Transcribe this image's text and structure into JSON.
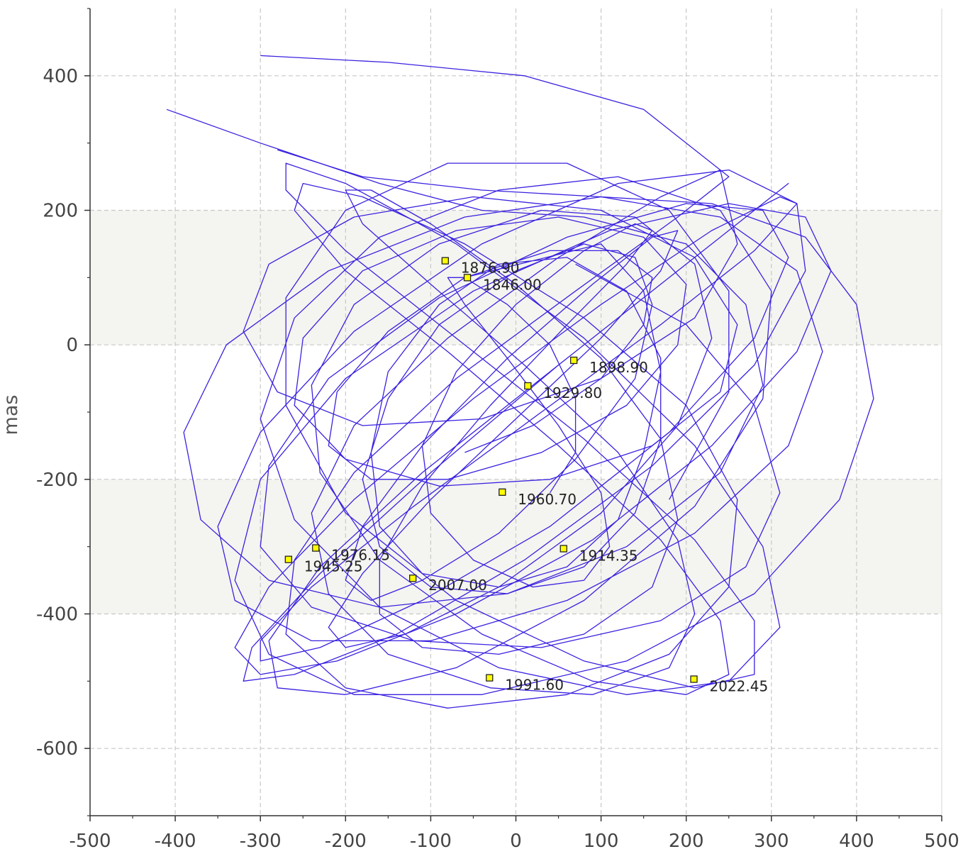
{
  "chart_data": {
    "type": "line",
    "title": "",
    "xlabel": "",
    "ylabel": "mas",
    "xlim": [
      -500,
      500
    ],
    "ylim": [
      -700,
      500
    ],
    "x_ticks": [
      -500,
      -400,
      -300,
      -200,
      -100,
      0,
      100,
      200,
      300,
      400,
      500
    ],
    "y_ticks": [
      400,
      200,
      0,
      -200,
      -400,
      -600
    ],
    "x_tick_labels": [
      "-500",
      "-400",
      "-300",
      "-200",
      "-100",
      "0",
      "100",
      "200",
      "300",
      "400",
      "500"
    ],
    "y_tick_labels": [
      "400",
      "200",
      "0",
      "-200",
      "-400",
      "-600"
    ],
    "grid": true,
    "bands_y": [
      [
        200,
        0
      ],
      [
        -200,
        -400
      ]
    ],
    "colors": {
      "line": "#3a22e0",
      "marker_fill": "#ffff00",
      "marker_edge": "#222222",
      "band": "#f4f4f0",
      "grid": "#c8c8c8"
    },
    "series": [
      {
        "x": [
          -60,
          100,
          150,
          170,
          150,
          120,
          60,
          -20,
          -110,
          -160,
          -170,
          -150,
          -90,
          -20,
          60,
          130,
          170,
          170,
          140,
          80,
          -10,
          -100,
          -160,
          -180,
          -150,
          -90,
          0,
          80,
          140,
          160,
          140,
          70,
          -20,
          -110,
          -170,
          -200,
          -180,
          -110,
          -10,
          90,
          160,
          190,
          170,
          100,
          0,
          -100,
          -180,
          -220,
          -200,
          -130,
          -20,
          100,
          190,
          230,
          210,
          140,
          30,
          -90,
          -190,
          -240,
          -230,
          -160,
          -40,
          90,
          200,
          250,
          240,
          170,
          50,
          -80,
          -200,
          -260,
          -250,
          -180,
          -60,
          80,
          200,
          260,
          250,
          180,
          60,
          -80,
          -200,
          -270,
          -260,
          -190,
          -70,
          70,
          190,
          250,
          240,
          170,
          50,
          -80,
          -190,
          -240,
          -220,
          -150,
          -30,
          90,
          180,
          210,
          190,
          120,
          10,
          -100,
          -180,
          -200,
          -170,
          -100,
          0,
          100,
          170,
          190,
          160,
          80,
          -20,
          -110,
          -160,
          -160,
          -110,
          -30,
          60,
          130,
          160,
          140,
          80,
          0,
          -70,
          -110,
          -100,
          -50,
          20,
          80,
          110,
          100,
          50,
          -10,
          -60,
          -80,
          -60,
          -10,
          40,
          70,
          70,
          40
        ],
        "y": [
          100,
          150,
          80,
          -40,
          -160,
          -260,
          -330,
          -360,
          -340,
          -270,
          -160,
          -40,
          60,
          120,
          130,
          80,
          -20,
          -140,
          -250,
          -330,
          -370,
          -360,
          -300,
          -200,
          -80,
          30,
          110,
          150,
          130,
          60,
          -50,
          -170,
          -280,
          -350,
          -380,
          -350,
          -270,
          -150,
          -20,
          90,
          160,
          170,
          110,
          10,
          -110,
          -230,
          -340,
          -420,
          -450,
          -430,
          -360,
          -250,
          -120,
          10,
          120,
          190,
          200,
          150,
          60,
          -60,
          -190,
          -320,
          -430,
          -500,
          -520,
          -490,
          -410,
          -290,
          -150,
          -10,
          110,
          200,
          240,
          220,
          150,
          40,
          -90,
          -230,
          -360,
          -460,
          -520,
          -540,
          -510,
          -430,
          -320,
          -190,
          -50,
          80,
          190,
          250,
          260,
          220,
          130,
          10,
          -120,
          -250,
          -370,
          -460,
          -510,
          -520,
          -480,
          -400,
          -290,
          -160,
          -30,
          90,
          180,
          230,
          230,
          180,
          90,
          -20,
          -140,
          -260,
          -360,
          -430,
          -460,
          -450,
          -400,
          -320,
          -210,
          -90,
          30,
          120,
          170,
          180,
          140,
          60,
          -40,
          -150,
          -250,
          -320,
          -360,
          -350,
          -300,
          -220,
          -120,
          -20,
          60,
          100,
          100,
          60,
          0,
          -80,
          -160,
          -220
        ]
      },
      {
        "x": [
          -410,
          -300,
          -160,
          -40,
          80,
          200,
          270,
          290,
          240,
          130,
          -10,
          -160,
          -290,
          -370,
          -390,
          -340,
          -220,
          -60,
          100,
          240,
          330,
          360,
          320,
          210,
          60,
          -100,
          -240,
          -330,
          -350,
          -300,
          -190,
          -40,
          120,
          250,
          330,
          340,
          280,
          160,
          10,
          -140,
          -260,
          -320,
          -310,
          -230,
          -100,
          50,
          190,
          290,
          320,
          280,
          180,
          40,
          -110,
          -230,
          -290,
          -280,
          -200,
          -70,
          80,
          210,
          290,
          300,
          240,
          120,
          -20,
          -160,
          -260,
          -300,
          -260,
          -160,
          -20,
          130,
          250,
          310,
          290,
          210,
          80,
          -70,
          -200,
          -270,
          -270,
          -200,
          -70,
          80,
          210,
          280,
          280,
          210,
          80,
          -70,
          -200,
          -270,
          -270,
          -200,
          -80,
          60,
          180,
          250,
          250,
          180
        ],
        "y": [
          350,
          300,
          240,
          200,
          190,
          150,
          60,
          -60,
          -190,
          -300,
          -370,
          -390,
          -350,
          -260,
          -130,
          0,
          110,
          190,
          220,
          190,
          110,
          -10,
          -150,
          -280,
          -380,
          -440,
          -440,
          -380,
          -270,
          -130,
          20,
          150,
          240,
          260,
          210,
          110,
          -30,
          -180,
          -320,
          -430,
          -490,
          -500,
          -450,
          -340,
          -190,
          -30,
          110,
          210,
          240,
          200,
          100,
          -40,
          -190,
          -330,
          -440,
          -510,
          -520,
          -480,
          -380,
          -240,
          -80,
          80,
          200,
          250,
          230,
          160,
          40,
          -110,
          -260,
          -390,
          -480,
          -520,
          -500,
          -420,
          -300,
          -150,
          10,
          150,
          240,
          270,
          230,
          140,
          10,
          -140,
          -290,
          -410,
          -490,
          -510,
          -470,
          -380,
          -250,
          -90,
          70,
          200,
          270,
          270,
          200,
          80,
          -70,
          -230
        ]
      },
      {
        "x": [
          -280,
          -180,
          -40,
          100,
          230,
          340,
          400,
          420,
          380,
          280,
          130,
          -40,
          -190,
          -290,
          -330,
          -300,
          -200,
          -50,
          110,
          250,
          340,
          370,
          330,
          230,
          90,
          -70,
          -210,
          -300,
          -330,
          -290,
          -190,
          -50,
          100,
          230,
          310,
          330,
          280,
          170,
          30,
          -120,
          -240,
          -300,
          -300,
          -230,
          -110,
          40,
          180,
          280,
          320,
          290,
          200,
          60,
          -90,
          -220,
          -290,
          -300,
          -240,
          -120,
          30,
          170,
          270,
          310,
          280,
          200,
          70
        ],
        "y": [
          290,
          250,
          230,
          220,
          210,
          160,
          60,
          -80,
          -230,
          -370,
          -470,
          -520,
          -520,
          -460,
          -350,
          -200,
          -50,
          80,
          170,
          210,
          190,
          110,
          -10,
          -150,
          -290,
          -400,
          -470,
          -490,
          -450,
          -360,
          -230,
          -80,
          60,
          170,
          220,
          210,
          140,
          30,
          -100,
          -240,
          -360,
          -440,
          -470,
          -450,
          -380,
          -270,
          -130,
          10,
          130,
          200,
          210,
          160,
          70,
          -50,
          -180,
          -300,
          -390,
          -440,
          -450,
          -410,
          -330,
          -220,
          -90,
          30,
          120
        ]
      },
      {
        "x": [
          -300,
          -150,
          10,
          150,
          240,
          260,
          210,
          100,
          -40,
          -180,
          -280,
          -320,
          -290,
          -190,
          -50,
          100,
          210,
          260,
          240,
          160,
          40,
          -90,
          -200,
          -260,
          -250,
          -180,
          -70,
          50,
          150,
          200,
          190,
          130,
          30,
          -80,
          -170,
          -220,
          -210,
          -150,
          -60,
          40,
          120,
          160,
          150,
          100,
          20,
          -60
        ],
        "y": [
          430,
          420,
          400,
          350,
          260,
          150,
          40,
          -50,
          -110,
          -120,
          -70,
          20,
          120,
          190,
          220,
          200,
          130,
          30,
          -70,
          -150,
          -200,
          -210,
          -170,
          -90,
          10,
          110,
          170,
          190,
          160,
          90,
          0,
          -90,
          -160,
          -200,
          -200,
          -150,
          -70,
          20,
          100,
          140,
          140,
          100,
          30,
          -50,
          -120,
          -160
        ]
      }
    ],
    "annotations": [
      {
        "label": "1876.90",
        "x": -83,
        "y": 125
      },
      {
        "label": "1846.00",
        "x": -57,
        "y": 100
      },
      {
        "label": "1898.90",
        "x": 68,
        "y": -23
      },
      {
        "label": "1929.80",
        "x": 14,
        "y": -61
      },
      {
        "label": "1960.70",
        "x": -16,
        "y": -219
      },
      {
        "label": "1914.35",
        "x": 56,
        "y": -303
      },
      {
        "label": "1976.15",
        "x": -235,
        "y": -302
      },
      {
        "label": "1945.25",
        "x": -267,
        "y": -319
      },
      {
        "label": "2007.00",
        "x": -121,
        "y": -347
      },
      {
        "label": "1991.60",
        "x": -31,
        "y": -495
      },
      {
        "label": "2022.45",
        "x": 209,
        "y": -497
      }
    ]
  }
}
